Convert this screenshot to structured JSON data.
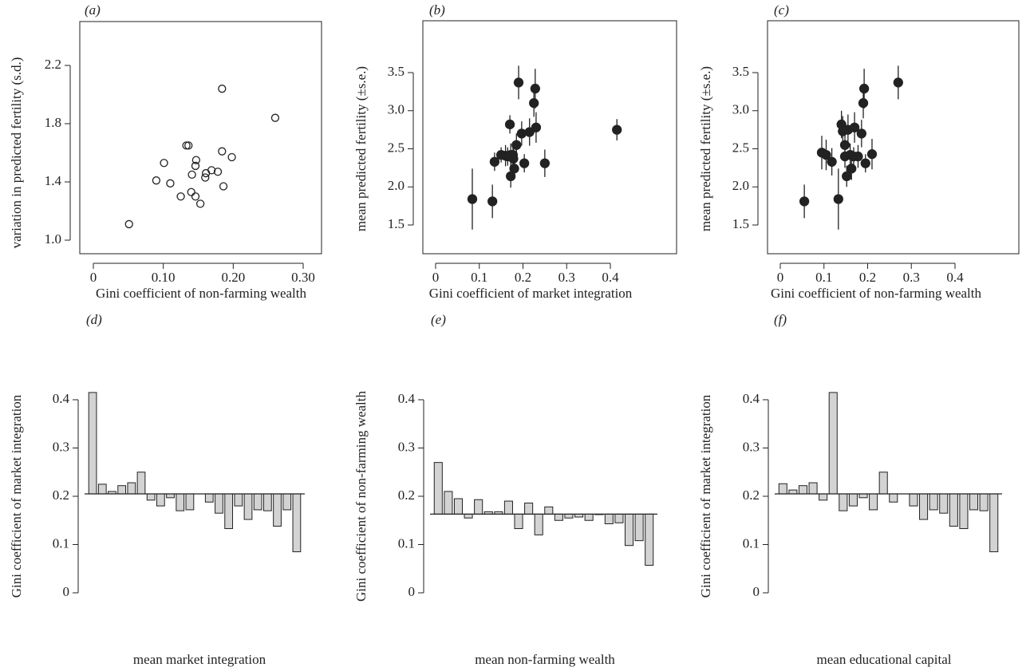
{
  "chart_data": [
    {
      "type": "scatter",
      "title": "(a)",
      "xlabel": "Gini coefficient of non-farming wealth",
      "ylabel": "variation in predicted fertility (s.d.)",
      "marker_fill": "none",
      "color": "#222222",
      "xlim": [
        0,
        0.3
      ],
      "xticks": [
        0,
        {
          "value": 0.1,
          "label": "0.10"
        },
        {
          "value": 0.2,
          "label": "0.20"
        },
        {
          "value": 0.3,
          "label": "0.30"
        }
      ],
      "ylim": [
        1.0,
        2.2
      ],
      "yticks": [
        {
          "value": 1.0,
          "label": "1.0"
        },
        1.4,
        1.8,
        2.2
      ],
      "x": [
        0.051,
        0.09,
        0.101,
        0.11,
        0.125,
        0.133,
        0.136,
        0.141,
        0.14,
        0.147,
        0.146,
        0.146,
        0.153,
        0.16,
        0.161,
        0.169,
        0.178,
        0.184,
        0.186,
        0.184,
        0.198,
        0.26
      ],
      "values": [
        1.11,
        1.41,
        1.53,
        1.39,
        1.3,
        1.65,
        1.65,
        1.45,
        1.33,
        1.55,
        1.51,
        1.3,
        1.25,
        1.43,
        1.46,
        1.48,
        1.47,
        1.61,
        1.37,
        2.04,
        1.57,
        1.84
      ]
    },
    {
      "type": "errorbar",
      "title": "(b)",
      "xlabel": "Gini coefficient of market integration",
      "ylabel": "mean predicted fertility (±s.e.)",
      "marker_fill": "#222222",
      "color": "#222222",
      "xlim": [
        0,
        0.4
      ],
      "xticks": [
        0,
        0.1,
        0.2,
        0.3,
        0.4
      ],
      "ylim": [
        1.5,
        3.5
      ],
      "yticks": [
        1.5,
        {
          "value": 2.0,
          "label": "2.0"
        },
        2.5,
        {
          "value": 3.0,
          "label": "3.0"
        },
        3.5
      ],
      "x": [
        0.084,
        0.13,
        0.135,
        0.15,
        0.16,
        0.165,
        0.17,
        0.172,
        0.172,
        0.178,
        0.177,
        0.18,
        0.185,
        0.19,
        0.197,
        0.203,
        0.215,
        0.225,
        0.228,
        0.23,
        0.25,
        0.415
      ],
      "values": [
        1.84,
        1.81,
        2.33,
        2.42,
        2.41,
        2.4,
        2.82,
        2.42,
        2.14,
        2.37,
        2.42,
        2.24,
        2.55,
        3.37,
        2.7,
        2.31,
        2.72,
        3.1,
        3.29,
        2.78,
        2.31,
        2.75
      ],
      "errors": [
        0.4,
        0.22,
        0.12,
        0.1,
        0.14,
        0.12,
        0.12,
        0.15,
        0.15,
        0.17,
        0.12,
        0.14,
        0.15,
        0.22,
        0.16,
        0.12,
        0.18,
        0.18,
        0.26,
        0.2,
        0.18,
        0.14
      ]
    },
    {
      "type": "errorbar",
      "title": "(c)",
      "xlabel": "Gini coefficient of non-farming wealth",
      "ylabel": "mean predicted fertility (±s.e.)",
      "marker_fill": "#222222",
      "color": "#222222",
      "xlim": [
        0,
        0.4
      ],
      "xticks": [
        0,
        0.1,
        0.2,
        0.3,
        0.4
      ],
      "ylim": [
        1.5,
        3.5
      ],
      "yticks": [
        1.5,
        {
          "value": 2.0,
          "label": "2.0"
        },
        2.5,
        {
          "value": 3.0,
          "label": "3.0"
        },
        3.5
      ],
      "x": [
        0.055,
        0.095,
        0.105,
        0.118,
        0.133,
        0.14,
        0.143,
        0.148,
        0.148,
        0.152,
        0.155,
        0.16,
        0.163,
        0.168,
        0.17,
        0.178,
        0.186,
        0.19,
        0.192,
        0.195,
        0.21,
        0.27
      ],
      "values": [
        1.81,
        2.45,
        2.42,
        2.33,
        1.84,
        2.82,
        2.73,
        2.55,
        2.4,
        2.14,
        2.75,
        2.42,
        2.24,
        2.4,
        2.78,
        2.4,
        2.7,
        3.1,
        3.29,
        2.31,
        2.43,
        3.37
      ],
      "errors": [
        0.22,
        0.22,
        0.2,
        0.18,
        0.4,
        0.18,
        0.2,
        0.18,
        0.15,
        0.14,
        0.2,
        0.15,
        0.15,
        0.12,
        0.2,
        0.15,
        0.18,
        0.2,
        0.26,
        0.12,
        0.2,
        0.22
      ]
    },
    {
      "type": "bar",
      "title": "(d)",
      "xlabel": "mean market integration",
      "ylabel": "Gini coefficient of market integration",
      "color": "#d3d3d3",
      "reference_line": 0.205,
      "ylim": [
        0,
        0.4
      ],
      "yticks": [
        0,
        0.1,
        0.2,
        0.3,
        0.4
      ],
      "categories": [
        null,
        null,
        null,
        null,
        null,
        null,
        null,
        null,
        null,
        null,
        null,
        null,
        null,
        null,
        null,
        null,
        null,
        null,
        null,
        null,
        null,
        null
      ],
      "values": [
        0.415,
        0.225,
        0.21,
        0.222,
        0.228,
        0.25,
        0.192,
        0.18,
        0.197,
        0.17,
        0.172,
        0.205,
        0.188,
        0.165,
        0.133,
        0.18,
        0.152,
        0.172,
        0.17,
        0.138,
        0.172,
        0.085
      ]
    },
    {
      "type": "bar",
      "title": "(e)",
      "xlabel": "mean non-farming wealth",
      "ylabel": "Gini coefficient of non-farming wealth",
      "color": "#d3d3d3",
      "reference_line": 0.163,
      "ylim": [
        0,
        0.4
      ],
      "yticks": [
        0,
        0.1,
        0.2,
        0.3,
        0.4
      ],
      "categories": [
        null,
        null,
        null,
        null,
        null,
        null,
        null,
        null,
        null,
        null,
        null,
        null,
        null,
        null,
        null,
        null,
        null,
        null,
        null,
        null,
        null,
        null
      ],
      "values": [
        0.27,
        0.21,
        0.195,
        0.155,
        0.193,
        0.168,
        0.168,
        0.19,
        0.133,
        0.186,
        0.12,
        0.178,
        0.15,
        0.155,
        0.157,
        0.15,
        0.162,
        0.143,
        0.145,
        0.098,
        0.108,
        0.057
      ]
    },
    {
      "type": "bar",
      "title": "(f)",
      "xlabel": "mean educational capital",
      "ylabel": "Gini coefficient of market integration",
      "color": "#d3d3d3",
      "reference_line": 0.205,
      "ylim": [
        0,
        0.4
      ],
      "yticks": [
        0,
        0.1,
        0.2,
        0.3,
        0.4
      ],
      "categories": [
        null,
        null,
        null,
        null,
        null,
        null,
        null,
        null,
        null,
        null,
        null,
        null,
        null,
        null,
        null,
        null,
        null,
        null,
        null,
        null,
        null,
        null
      ],
      "values": [
        0.226,
        0.213,
        0.222,
        0.228,
        0.192,
        0.415,
        0.17,
        0.18,
        0.197,
        0.172,
        0.25,
        0.188,
        0.205,
        0.18,
        0.152,
        0.172,
        0.165,
        0.138,
        0.133,
        0.172,
        0.17,
        0.085
      ]
    }
  ]
}
